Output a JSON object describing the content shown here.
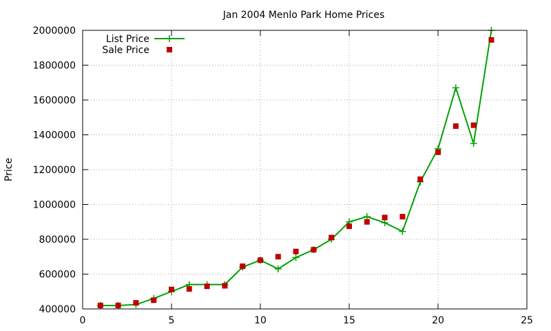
{
  "chart_data": {
    "type": "line",
    "title": "Jan 2004 Menlo Park Home Prices",
    "xlabel": "",
    "ylabel": "Price",
    "xlim": [
      0,
      25
    ],
    "ylim": [
      400000,
      2000000
    ],
    "x_ticks": [
      0,
      5,
      10,
      15,
      20,
      25
    ],
    "y_ticks": [
      400000,
      600000,
      800000,
      1000000,
      1200000,
      1400000,
      1600000,
      1800000,
      2000000
    ],
    "grid": true,
    "legend_position": "top-left",
    "series": [
      {
        "name": "List Price",
        "style": "line-plus",
        "color": "#00a000",
        "x": [
          1,
          2,
          3,
          4,
          5,
          6,
          7,
          8,
          9,
          10,
          11,
          12,
          13,
          14,
          15,
          16,
          17,
          18,
          19,
          20,
          21,
          22,
          23
        ],
        "y": [
          420000,
          420000,
          425000,
          460000,
          500000,
          540000,
          540000,
          540000,
          640000,
          680000,
          630000,
          695000,
          740000,
          800000,
          900000,
          930000,
          895000,
          845000,
          1130000,
          1320000,
          1670000,
          1350000,
          2000000
        ]
      },
      {
        "name": "Sale Price",
        "style": "square",
        "color": "#c00000",
        "x": [
          1,
          2,
          3,
          4,
          5,
          6,
          7,
          8,
          9,
          10,
          11,
          12,
          13,
          14,
          15,
          16,
          17,
          18,
          19,
          20,
          21,
          22,
          23
        ],
        "y": [
          420000,
          420000,
          435000,
          450000,
          512000,
          515000,
          530000,
          533000,
          645000,
          680000,
          700000,
          730000,
          740000,
          810000,
          875000,
          900000,
          925000,
          930000,
          1145000,
          1300000,
          1450000,
          1455000,
          1945000
        ]
      }
    ]
  }
}
